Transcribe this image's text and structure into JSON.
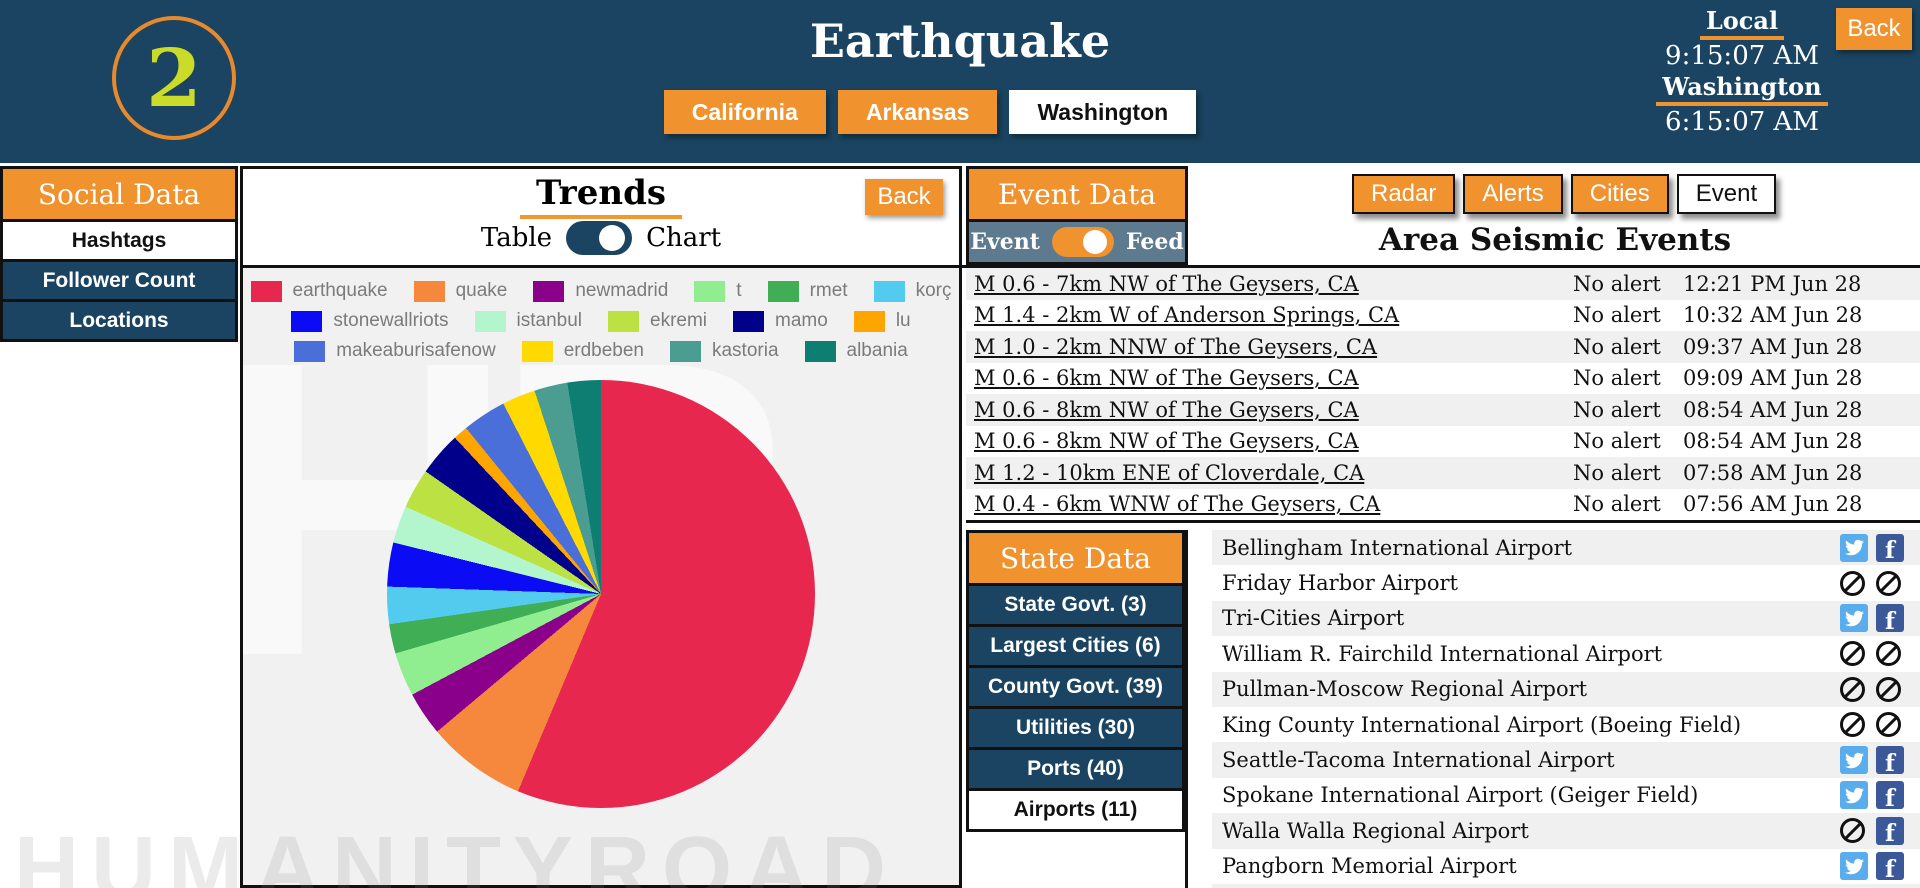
{
  "header": {
    "step_number": "2",
    "title": "Earthquake",
    "tabs": [
      {
        "label": "California",
        "active": false
      },
      {
        "label": "Arkansas",
        "active": false
      },
      {
        "label": "Washington",
        "active": true
      }
    ],
    "clock": {
      "local_label": "Local",
      "local_time": "9:15:07 AM",
      "state_label": "Washington",
      "state_time": "6:15:07 AM"
    },
    "back_label": "Back"
  },
  "sidebar": {
    "title": "Social Data",
    "items": [
      {
        "label": "Hashtags",
        "active": true
      },
      {
        "label": "Follower Count",
        "active": false
      },
      {
        "label": "Locations",
        "active": false
      }
    ]
  },
  "trends": {
    "title": "Trends",
    "back_label": "Back",
    "toggle": {
      "left": "Table",
      "right": "Chart",
      "selected": "Chart"
    }
  },
  "chart_data": {
    "type": "pie",
    "title": "Trends",
    "legend_position": "top",
    "unit": "percent (estimated from arc angles, no numeric labels shown)",
    "series": [
      {
        "label": "earthquake",
        "value": 56.0,
        "color": "#E8274F"
      },
      {
        "label": "quake",
        "value": 7.5,
        "color": "#F6883D"
      },
      {
        "label": "newmadrid",
        "value": 3.3,
        "color": "#8B008B"
      },
      {
        "label": "t",
        "value": 3.3,
        "color": "#90EE90"
      },
      {
        "label": "rmet",
        "value": 2.2,
        "color": "#3FAE54"
      },
      {
        "label": "korç",
        "value": 2.8,
        "color": "#53CBEE"
      },
      {
        "label": "stonewallriots",
        "value": 3.3,
        "color": "#0B0BF5"
      },
      {
        "label": "istanbul",
        "value": 2.8,
        "color": "#B3F5CD"
      },
      {
        "label": "ekremi",
        "value": 3.0,
        "color": "#BCE143"
      },
      {
        "label": "mamo",
        "value": 3.3,
        "color": "#00008B"
      },
      {
        "label": "lu",
        "value": 1.1,
        "color": "#FFA500"
      },
      {
        "label": "makeaburisafenow",
        "value": 3.3,
        "color": "#4A6FD9"
      },
      {
        "label": "erdbeben",
        "value": 2.5,
        "color": "#FFD900"
      },
      {
        "label": "kastoria",
        "value": 2.5,
        "color": "#4B9D92"
      },
      {
        "label": "albania",
        "value": 2.5,
        "color": "#0D7E71"
      }
    ],
    "legend_rows": [
      6,
      5,
      4
    ]
  },
  "event_panel": {
    "title": "Event Data",
    "toggle": {
      "left": "Event",
      "right": "Feed",
      "selected": "Feed"
    }
  },
  "map_buttons": [
    {
      "label": "Radar",
      "style": "orange"
    },
    {
      "label": "Alerts",
      "style": "orange"
    },
    {
      "label": "Cities",
      "style": "orange"
    },
    {
      "label": "Event",
      "style": "white"
    }
  ],
  "seismic": {
    "title": "Area Seismic Events",
    "rows": [
      {
        "name": "M 0.6 - 7km NW of The Geysers, CA",
        "alert": "No alert",
        "time": "12:21 PM Jun 28"
      },
      {
        "name": "M 1.4 - 2km W of Anderson Springs, CA",
        "alert": "No alert",
        "time": "10:32 AM Jun 28"
      },
      {
        "name": "M 1.0 - 2km NNW of The Geysers, CA",
        "alert": "No alert",
        "time": "09:37 AM Jun 28"
      },
      {
        "name": "M 0.6 - 6km NW of The Geysers, CA",
        "alert": "No alert",
        "time": "09:09 AM Jun 28"
      },
      {
        "name": "M 0.6 - 8km NW of The Geysers, CA",
        "alert": "No alert",
        "time": "08:54 AM Jun 28"
      },
      {
        "name": "M 0.6 - 8km NW of The Geysers, CA",
        "alert": "No alert",
        "time": "08:54 AM Jun 28"
      },
      {
        "name": "M 1.2 - 10km ENE of Cloverdale, CA",
        "alert": "No alert",
        "time": "07:58 AM Jun 28"
      },
      {
        "name": "M 0.4 - 6km WNW of The Geysers, CA",
        "alert": "No alert",
        "time": "07:56 AM Jun 28"
      }
    ]
  },
  "state_panel": {
    "title": "State Data",
    "items": [
      {
        "label": "State Govt. (3)",
        "active": false
      },
      {
        "label": "Largest Cities (6)",
        "active": false
      },
      {
        "label": "County Govt. (39)",
        "active": false
      },
      {
        "label": "Utilities (30)",
        "active": false
      },
      {
        "label": "Ports (40)",
        "active": false
      },
      {
        "label": "Airports (11)",
        "active": true
      }
    ]
  },
  "airports": {
    "rows": [
      {
        "name": "Bellingham International Airport",
        "twitter": true,
        "facebook": true
      },
      {
        "name": "Friday Harbor Airport",
        "twitter": false,
        "facebook": false
      },
      {
        "name": "Tri-Cities Airport",
        "twitter": true,
        "facebook": true
      },
      {
        "name": "William R. Fairchild International Airport",
        "twitter": false,
        "facebook": false
      },
      {
        "name": "Pullman-Moscow Regional Airport",
        "twitter": false,
        "facebook": false
      },
      {
        "name": "King County International Airport (Boeing Field)",
        "twitter": false,
        "facebook": false
      },
      {
        "name": "Seattle-Tacoma International Airport",
        "twitter": true,
        "facebook": true
      },
      {
        "name": "Spokane International Airport (Geiger Field)",
        "twitter": true,
        "facebook": true
      },
      {
        "name": "Walla Walla Regional Airport",
        "twitter": false,
        "facebook": true
      },
      {
        "name": "Pangborn Memorial Airport",
        "twitter": true,
        "facebook": true
      }
    ]
  },
  "watermark": "HUMANITYROAD",
  "colors": {
    "header_blue": "#1A4461",
    "accent_orange": "#F0922D",
    "slate_bar": "#5D7A8E",
    "row_gray": "#F0F0F0",
    "circle_number": "#CBDB2A"
  }
}
